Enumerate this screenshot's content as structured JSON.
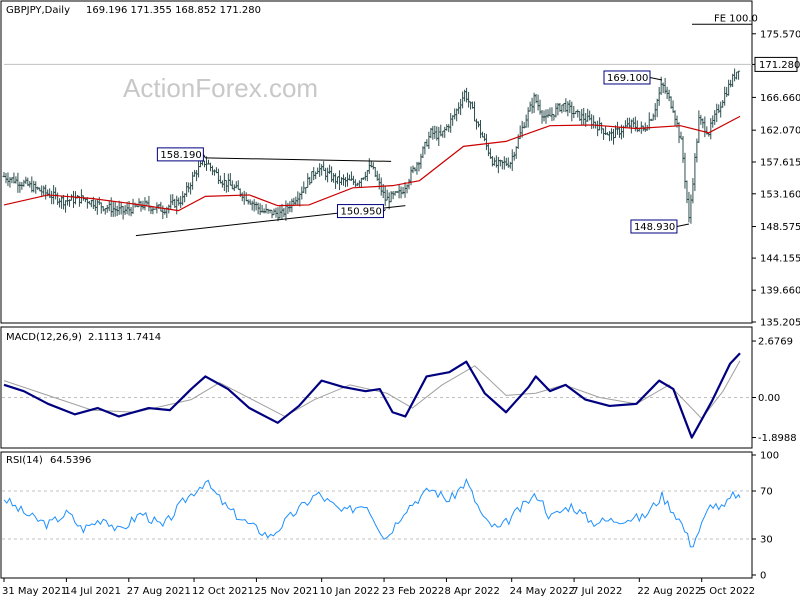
{
  "colors": {
    "price": "#2f4f4f",
    "sma": "#cc0000",
    "macd": "#000080",
    "signal": "#a0a0a0",
    "rsi": "#1e90ff",
    "grid": "#c0c0c0",
    "level": "#808080"
  },
  "watermark": "ActionForex.com",
  "chart_data": [
    {
      "type": "line",
      "title": "GBPJPY,Daily",
      "ohlc_header": "169.196 171.355 168.852 171.280",
      "yticks": [
        "175.570",
        "171.280",
        "166.660",
        "162.070",
        "157.615",
        "153.160",
        "148.575",
        "144.155",
        "139.660",
        "135.205"
      ],
      "ylim": [
        135.205,
        177.5
      ],
      "last_price": 171.28,
      "fe_label": "FE 100.0",
      "fe_level": 176.9,
      "annotations": [
        {
          "text": "158.190",
          "value": 158.19,
          "date": "2021-10-20"
        },
        {
          "text": "150.950",
          "value": 150.95,
          "date": "2022-02-24"
        },
        {
          "text": "169.100",
          "value": 169.1,
          "date": "2022-09-07"
        },
        {
          "text": "148.930",
          "value": 148.93,
          "date": "2022-09-26"
        }
      ],
      "trendlines": [
        {
          "from": [
            "2021-10-20",
            158.19
          ],
          "to": [
            "2022-02-28",
            157.7
          ]
        },
        {
          "from": [
            "2021-09-01",
            147.3
          ],
          "to": [
            "2022-03-10",
            151.5
          ]
        }
      ],
      "price_series": [
        [
          "2021-05-31",
          155.6
        ],
        [
          "2021-06-14",
          154.6
        ],
        [
          "2021-06-28",
          153.4
        ],
        [
          "2021-07-12",
          152.2
        ],
        [
          "2021-07-26",
          152.5
        ],
        [
          "2021-08-09",
          151.4
        ],
        [
          "2021-08-23",
          150.7
        ],
        [
          "2021-09-06",
          151.6
        ],
        [
          "2021-09-20",
          151.0
        ],
        [
          "2021-10-04",
          152.4
        ],
        [
          "2021-10-13",
          156.2
        ],
        [
          "2021-10-20",
          157.7
        ],
        [
          "2021-11-01",
          155.0
        ],
        [
          "2021-11-15",
          153.2
        ],
        [
          "2021-11-29",
          150.7
        ],
        [
          "2021-12-13",
          150.3
        ],
        [
          "2021-12-27",
          153.7
        ],
        [
          "2022-01-07",
          156.8
        ],
        [
          "2022-01-21",
          155.0
        ],
        [
          "2022-02-04",
          154.8
        ],
        [
          "2022-02-14",
          157.0
        ],
        [
          "2022-02-24",
          152.3
        ],
        [
          "2022-03-07",
          153.3
        ],
        [
          "2022-03-21",
          158.5
        ],
        [
          "2022-03-28",
          161.7
        ],
        [
          "2022-04-04",
          161.2
        ],
        [
          "2022-04-14",
          164.3
        ],
        [
          "2022-04-21",
          167.4
        ],
        [
          "2022-05-02",
          161.8
        ],
        [
          "2022-05-12",
          157.1
        ],
        [
          "2022-05-23",
          157.6
        ],
        [
          "2022-06-02",
          163.2
        ],
        [
          "2022-06-09",
          166.6
        ],
        [
          "2022-06-17",
          163.5
        ],
        [
          "2022-06-29",
          165.7
        ],
        [
          "2022-07-08",
          164.3
        ],
        [
          "2022-07-21",
          163.1
        ],
        [
          "2022-08-02",
          161.3
        ],
        [
          "2022-08-16",
          162.9
        ],
        [
          "2022-08-25",
          162.1
        ],
        [
          "2022-09-01",
          164.5
        ],
        [
          "2022-09-07",
          168.5
        ],
        [
          "2022-09-15",
          165.1
        ],
        [
          "2022-09-21",
          159.8
        ],
        [
          "2022-09-26",
          149.5
        ],
        [
          "2022-10-03",
          163.5
        ],
        [
          "2022-10-10",
          161.8
        ],
        [
          "2022-10-21",
          167.0
        ],
        [
          "2022-11-01",
          171.28
        ]
      ],
      "sma_series": [
        [
          "2021-05-31",
          151.6
        ],
        [
          "2021-07-01",
          153.0
        ],
        [
          "2021-08-01",
          152.5
        ],
        [
          "2021-09-01",
          151.7
        ],
        [
          "2021-10-01",
          150.8
        ],
        [
          "2021-10-20",
          152.8
        ],
        [
          "2021-11-20",
          153.0
        ],
        [
          "2021-12-10",
          151.5
        ],
        [
          "2022-01-01",
          151.6
        ],
        [
          "2022-02-01",
          154.0
        ],
        [
          "2022-03-01",
          154.3
        ],
        [
          "2022-03-20",
          155.0
        ],
        [
          "2022-04-20",
          159.8
        ],
        [
          "2022-05-20",
          160.5
        ],
        [
          "2022-06-20",
          162.7
        ],
        [
          "2022-07-20",
          162.8
        ],
        [
          "2022-08-20",
          162.3
        ],
        [
          "2022-09-20",
          162.7
        ],
        [
          "2022-10-10",
          161.7
        ],
        [
          "2022-11-01",
          164.0
        ]
      ]
    },
    {
      "type": "line",
      "title": "MACD(12,26,9)",
      "header_values": "2.1113 1.7414",
      "yticks": [
        "2.6769",
        "0.00",
        "-1.8988"
      ],
      "ylim": [
        -2.3,
        3.2
      ],
      "macd_series": [
        [
          "2021-05-31",
          0.6
        ],
        [
          "2021-06-14",
          0.3
        ],
        [
          "2021-07-01",
          -0.3
        ],
        [
          "2021-07-20",
          -0.8
        ],
        [
          "2021-08-05",
          -0.5
        ],
        [
          "2021-08-20",
          -0.9
        ],
        [
          "2021-09-10",
          -0.5
        ],
        [
          "2021-09-25",
          -0.6
        ],
        [
          "2021-10-10",
          0.4
        ],
        [
          "2021-10-20",
          1.0
        ],
        [
          "2021-11-05",
          0.4
        ],
        [
          "2021-11-20",
          -0.5
        ],
        [
          "2021-12-10",
          -1.2
        ],
        [
          "2021-12-25",
          -0.4
        ],
        [
          "2022-01-10",
          0.8
        ],
        [
          "2022-01-25",
          0.5
        ],
        [
          "2022-02-10",
          0.3
        ],
        [
          "2022-02-20",
          0.4
        ],
        [
          "2022-03-01",
          -0.7
        ],
        [
          "2022-03-10",
          -0.9
        ],
        [
          "2022-03-25",
          1.0
        ],
        [
          "2022-04-10",
          1.2
        ],
        [
          "2022-04-22",
          1.7
        ],
        [
          "2022-05-05",
          0.2
        ],
        [
          "2022-05-20",
          -0.7
        ],
        [
          "2022-06-05",
          0.5
        ],
        [
          "2022-06-10",
          1.0
        ],
        [
          "2022-06-20",
          0.3
        ],
        [
          "2022-07-01",
          0.6
        ],
        [
          "2022-07-15",
          -0.1
        ],
        [
          "2022-08-01",
          -0.4
        ],
        [
          "2022-08-20",
          -0.3
        ],
        [
          "2022-09-05",
          0.8
        ],
        [
          "2022-09-15",
          0.4
        ],
        [
          "2022-09-28",
          -1.9
        ],
        [
          "2022-10-12",
          -0.2
        ],
        [
          "2022-10-25",
          1.6
        ],
        [
          "2022-11-01",
          2.1
        ]
      ],
      "signal_series": [
        [
          "2021-05-31",
          0.8
        ],
        [
          "2021-07-01",
          0.1
        ],
        [
          "2021-08-01",
          -0.6
        ],
        [
          "2021-09-01",
          -0.7
        ],
        [
          "2021-10-10",
          -0.1
        ],
        [
          "2021-10-30",
          0.7
        ],
        [
          "2021-11-25",
          -0.2
        ],
        [
          "2021-12-15",
          -0.9
        ],
        [
          "2022-01-05",
          -0.1
        ],
        [
          "2022-01-30",
          0.6
        ],
        [
          "2022-02-25",
          0.2
        ],
        [
          "2022-03-15",
          -0.5
        ],
        [
          "2022-04-05",
          0.6
        ],
        [
          "2022-04-28",
          1.5
        ],
        [
          "2022-05-20",
          0.1
        ],
        [
          "2022-06-10",
          0.2
        ],
        [
          "2022-06-30",
          0.6
        ],
        [
          "2022-07-25",
          0.0
        ],
        [
          "2022-08-20",
          -0.3
        ],
        [
          "2022-09-12",
          0.6
        ],
        [
          "2022-10-05",
          -1.0
        ],
        [
          "2022-10-20",
          0.3
        ],
        [
          "2022-11-01",
          1.74
        ]
      ]
    },
    {
      "type": "line",
      "title": "RSI(14)",
      "header_values": "64.5396",
      "yticks": [
        "100",
        "70",
        "30",
        "0"
      ],
      "ylim": [
        0,
        100
      ],
      "levels": [
        70,
        30
      ],
      "rsi_series": [
        [
          "2021-05-31",
          64
        ],
        [
          "2021-06-10",
          55
        ],
        [
          "2021-06-20",
          48
        ],
        [
          "2021-07-01",
          42
        ],
        [
          "2021-07-15",
          52
        ],
        [
          "2021-07-25",
          38
        ],
        [
          "2021-08-10",
          48
        ],
        [
          "2021-08-20",
          36
        ],
        [
          "2021-09-05",
          52
        ],
        [
          "2021-09-20",
          40
        ],
        [
          "2021-10-05",
          62
        ],
        [
          "2021-10-20",
          78
        ],
        [
          "2021-11-05",
          55
        ],
        [
          "2021-11-20",
          42
        ],
        [
          "2021-12-05",
          32
        ],
        [
          "2021-12-20",
          50
        ],
        [
          "2022-01-07",
          68
        ],
        [
          "2022-01-25",
          52
        ],
        [
          "2022-02-10",
          60
        ],
        [
          "2022-02-24",
          30
        ],
        [
          "2022-03-10",
          55
        ],
        [
          "2022-03-28",
          72
        ],
        [
          "2022-04-10",
          62
        ],
        [
          "2022-04-22",
          78
        ],
        [
          "2022-05-05",
          45
        ],
        [
          "2022-05-15",
          38
        ],
        [
          "2022-06-05",
          62
        ],
        [
          "2022-06-12",
          67
        ],
        [
          "2022-06-20",
          48
        ],
        [
          "2022-07-05",
          58
        ],
        [
          "2022-07-20",
          44
        ],
        [
          "2022-08-05",
          46
        ],
        [
          "2022-08-25",
          48
        ],
        [
          "2022-09-07",
          66
        ],
        [
          "2022-09-20",
          45
        ],
        [
          "2022-09-28",
          24
        ],
        [
          "2022-10-12",
          60
        ],
        [
          "2022-10-20",
          55
        ],
        [
          "2022-10-28",
          68
        ],
        [
          "2022-11-01",
          64.5
        ]
      ]
    }
  ],
  "x_axis": {
    "ticks": [
      {
        "label": "31 May 2021",
        "date": "2021-05-31"
      },
      {
        "label": "14 Jul 2021",
        "date": "2021-07-14"
      },
      {
        "label": "27 Aug 2021",
        "date": "2021-08-27"
      },
      {
        "label": "12 Oct 2021",
        "date": "2021-10-12"
      },
      {
        "label": "25 Nov 2021",
        "date": "2021-11-25"
      },
      {
        "label": "10 Jan 2022",
        "date": "2022-01-10"
      },
      {
        "label": "23 Feb 2022",
        "date": "2022-02-23"
      },
      {
        "label": "8 Apr 2022",
        "date": "2022-04-08"
      },
      {
        "label": "24 May 2022",
        "date": "2022-05-24"
      },
      {
        "label": "7 Jul 2022",
        "date": "2022-07-07"
      },
      {
        "label": "22 Aug 2022",
        "date": "2022-08-22"
      },
      {
        "label": "5 Oct 2022",
        "date": "2022-10-05"
      }
    ],
    "range": [
      "2021-05-31",
      "2022-11-01"
    ]
  }
}
